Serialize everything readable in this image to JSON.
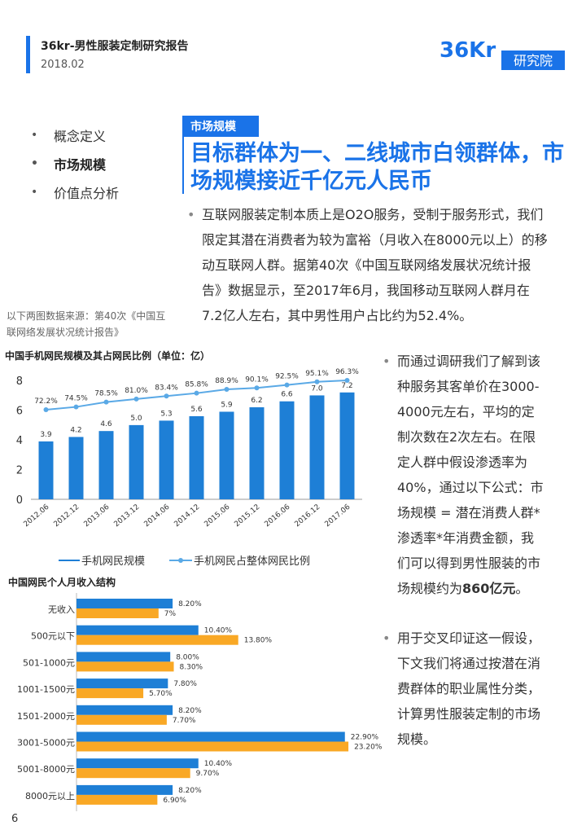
{
  "header": {
    "report_title": "36kr-男性服装定制研究报告",
    "date": "2018.02",
    "logo_main": "36Kr",
    "logo_sub": "研究院"
  },
  "nav": {
    "items": [
      {
        "label": "概念定义"
      },
      {
        "label": "市场规模"
      },
      {
        "label": "价值点分析"
      }
    ]
  },
  "section": {
    "tag": "市场规模",
    "headline": "目标群体为一、二线城市白领群体，市场规模接近千亿元人民币"
  },
  "body": {
    "bullet": "•",
    "p1": "互联网服装定制本质上是O2O服务，受制于服务形式，我们限定其潜在消费者为较为富裕（月收入在8000元以上）的移动互联网人群。据第40次《中国互联网络发展状况统计报告》数据显示，至2017年6月，我国移动互联网人群月在7.2亿人左右，其中男性用户占比约为52.4%。",
    "p2_pre": "而通过调研我们了解到该种服务其客单价在3000-4000元左右，平均的定制次数在2次左右。在限定人群中假设渗透率为40%，通过以下公式：市场规模 = 潜在消费人群*渗透率*年消费金额，我们可以得到男性服装的市场规模约为",
    "p2_bold": "860亿元",
    "p2_post": "。",
    "p3": "用于交叉印证这一假设，下文我们将通过按潜在消费群体的职业属性分类，计算男性服装定制的市场规模。",
    "source_note": "以下两图数据来源：第40次《中国互联网络发展状况统计报告》"
  },
  "page_number": "6",
  "colors": {
    "blue": "#1a73e8",
    "bar_blue": "#1e7fd6",
    "line_blue": "#5aa9e6",
    "orange": "#f9a825"
  },
  "chart_data": [
    {
      "type": "bar",
      "title": "中国手机网民规模及其占网民比例（单位：亿）",
      "categories": [
        "2012.06",
        "2012.12",
        "2013.06",
        "2013.12",
        "2014.06",
        "2014.12",
        "2015.06",
        "2015.12",
        "2016.06",
        "2016.12",
        "2017.06"
      ],
      "series": [
        {
          "name": "手机网民规模",
          "values": [
            3.9,
            4.2,
            4.6,
            5.0,
            5.3,
            5.6,
            5.9,
            6.2,
            6.6,
            7.0,
            7.2
          ],
          "labels": [
            "3.9",
            "4.2",
            "4.6",
            "5.0",
            "5.3",
            "5.6",
            "5.9",
            "6.2",
            "6.6",
            "7.0",
            "7.2"
          ]
        },
        {
          "name": "手机网民占整体网民比例",
          "values": [
            72.2,
            74.5,
            78.5,
            81.0,
            83.4,
            85.8,
            88.9,
            90.1,
            92.5,
            95.1,
            96.3
          ],
          "labels": [
            "72.2%",
            "74.5%",
            "78.5%",
            "81.0%",
            "83.4%",
            "85.8%",
            "88.9%",
            "90.1%",
            "92.5%",
            "95.1%",
            "96.3%"
          ]
        }
      ],
      "yticks": [
        "0",
        "2",
        "4",
        "6",
        "8"
      ],
      "ylim": [
        0,
        9
      ],
      "legend": "bottom"
    },
    {
      "type": "bar",
      "orientation": "horizontal",
      "title": "中国网民个人月收入结构",
      "categories": [
        "无收入",
        "500元以下",
        "501-1000元",
        "1001-1500元",
        "1501-2000元",
        "3001-5000元",
        "5001-8000元",
        "8000元以上"
      ],
      "series": [
        {
          "values": [
            8.2,
            10.4,
            8.0,
            7.8,
            8.2,
            22.9,
            10.4,
            8.2
          ],
          "labels": [
            "8.20%",
            "10.40%",
            "8.00%",
            "7.80%",
            "8.20%",
            "22.90%",
            "10.40%",
            "8.20%"
          ]
        },
        {
          "values": [
            7.0,
            13.8,
            8.3,
            5.7,
            7.7,
            23.2,
            9.7,
            6.9
          ],
          "labels": [
            "7%",
            "13.80%",
            "8.30%",
            "5.70%",
            "7.70%",
            "23.20%",
            "9.70%",
            "6.90%"
          ]
        }
      ]
    }
  ]
}
